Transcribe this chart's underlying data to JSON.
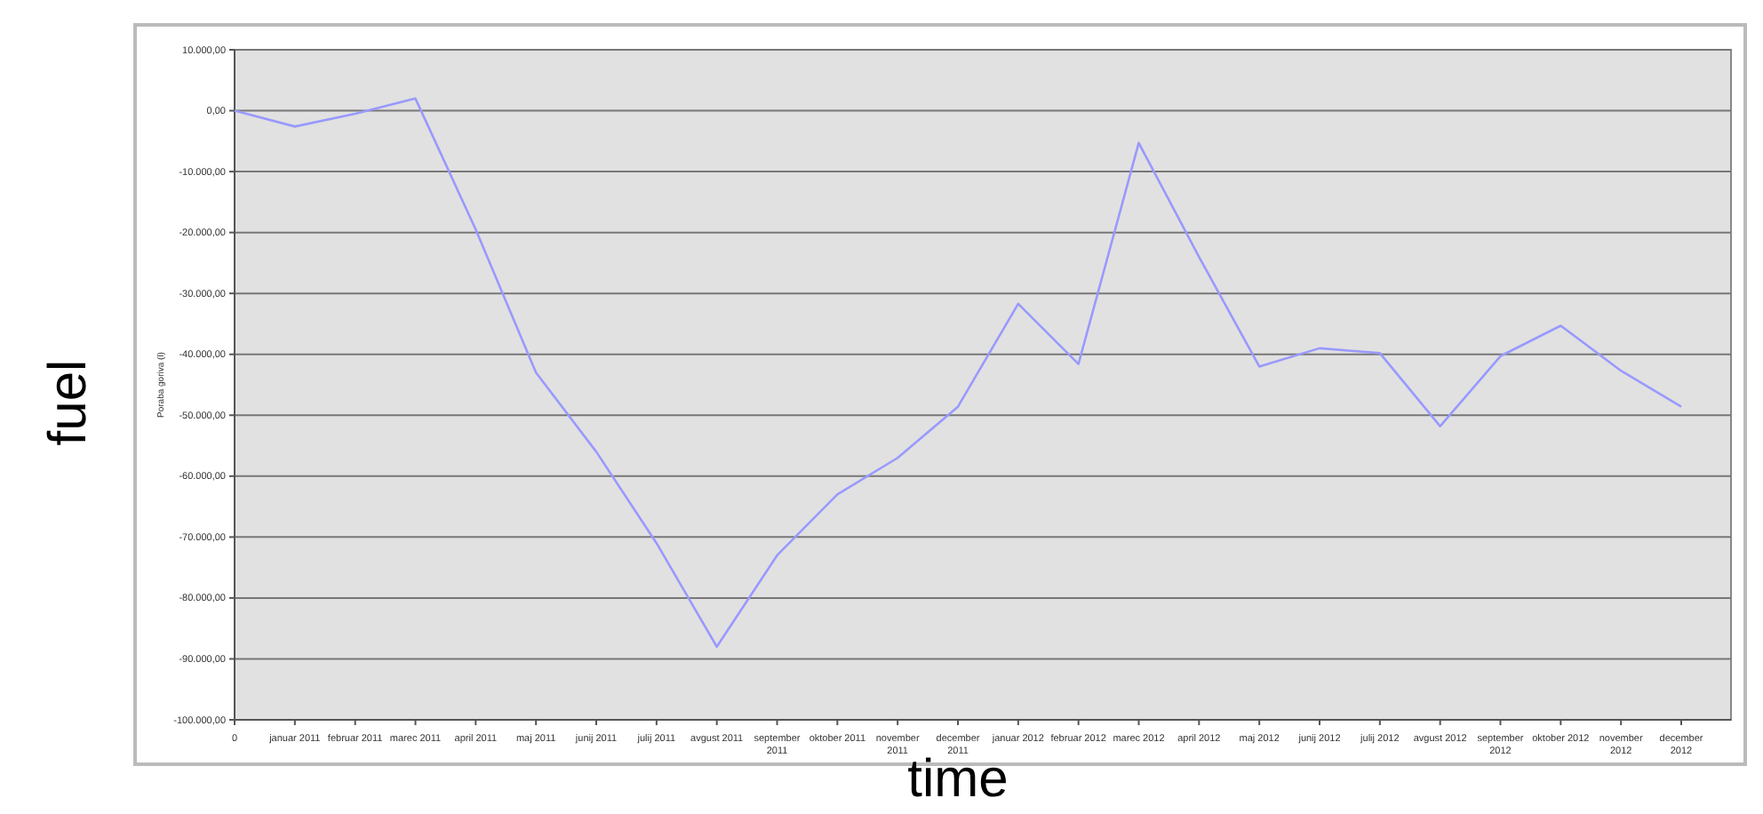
{
  "chart_data": {
    "type": "line",
    "xlabel": "time",
    "ylabel": "fuel",
    "annotations": [
      "Poraba goriva (l)"
    ],
    "categories": [
      "0",
      "januar 2011",
      "februar 2011",
      "marec 2011",
      "april 2011",
      "maj 2011",
      "junij 2011",
      "julij 2011",
      "avgust 2011",
      "september 2011",
      "oktober 2011",
      "november 2011",
      "december 2011",
      "januar 2012",
      "februar 2012",
      "marec 2012",
      "april 2012",
      "maj 2012",
      "junij 2012",
      "julij 2012",
      "avgust 2012",
      "september 2012",
      "oktober 2012",
      "november 2012",
      "december 2012"
    ],
    "series": [
      {
        "color": "#9999ff",
        "values": [
          0,
          -2600,
          -500,
          2000,
          -19500,
          -43000,
          -56000,
          -71000,
          -88000,
          -73000,
          -63000,
          -57000,
          -48600,
          -31700,
          -41600,
          -5300,
          -24000,
          -42000,
          -39000,
          -39800,
          -51800,
          -40300,
          -35300,
          -42700,
          -48600
        ]
      }
    ],
    "ylim": [
      -100000,
      10000
    ],
    "yticks": [
      {
        "value": -100000,
        "label": "-100.000,00"
      },
      {
        "value": -90000,
        "label": "-90.000,00"
      },
      {
        "value": -80000,
        "label": "-80.000,00"
      },
      {
        "value": -70000,
        "label": "-70.000,00"
      },
      {
        "value": -60000,
        "label": "-60.000,00"
      },
      {
        "value": -50000,
        "label": "-50.000,00"
      },
      {
        "value": -40000,
        "label": "-40.000,00"
      },
      {
        "value": -30000,
        "label": "-30.000,00"
      },
      {
        "value": -20000,
        "label": "-20.000,00"
      },
      {
        "value": -10000,
        "label": "-10.000,00"
      },
      {
        "value": 0,
        "label": "0,00"
      },
      {
        "value": 10000,
        "label": "10.000,00"
      }
    ],
    "grid": "y",
    "marker": "none",
    "line_style": "solid"
  }
}
